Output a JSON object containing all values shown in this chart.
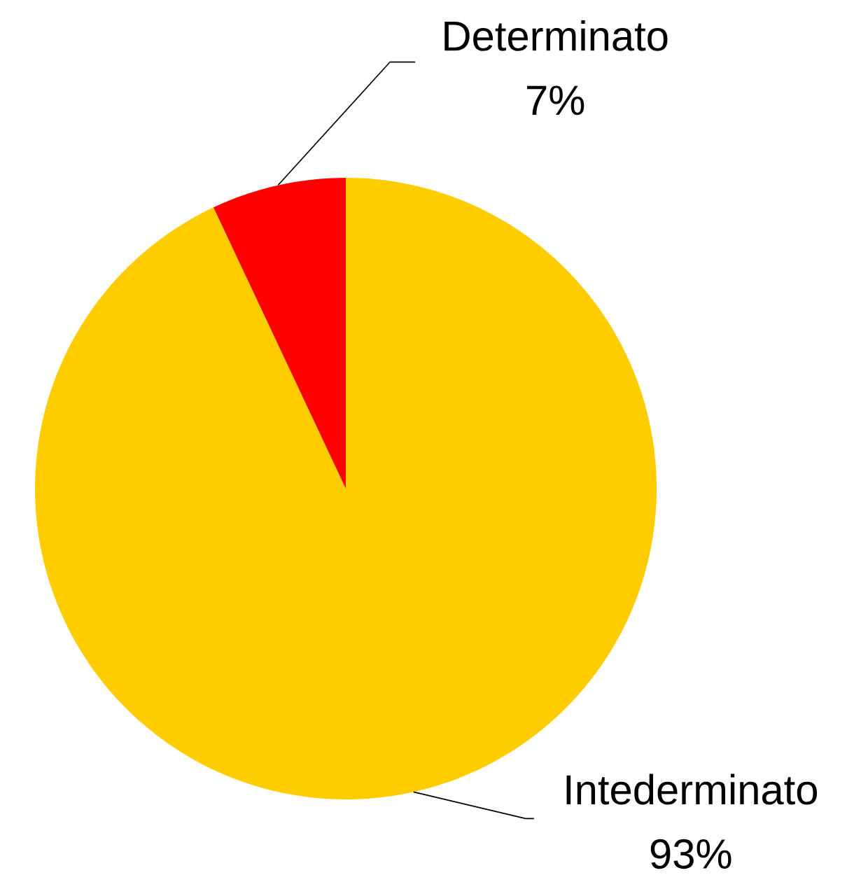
{
  "chart_data": {
    "type": "pie",
    "categories": [
      "Intederminato",
      "Determinato"
    ],
    "values": [
      93,
      7
    ],
    "colors": [
      "#ffcc00",
      "#ff0000"
    ],
    "value_labels": [
      "93%",
      "7%"
    ]
  }
}
